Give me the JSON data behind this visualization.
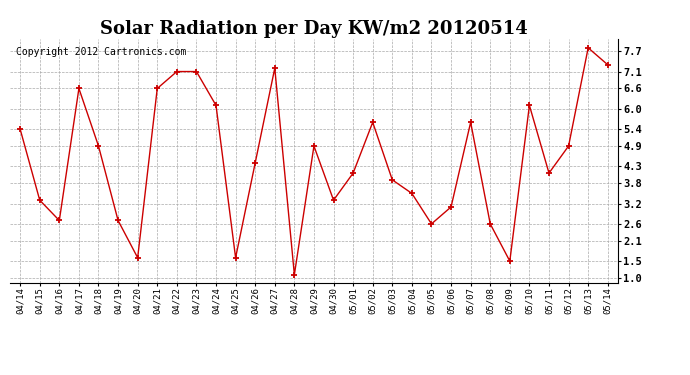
{
  "title": "Solar Radiation per Day KW/m2 20120514",
  "copyright": "Copyright 2012 Cartronics.com",
  "x_labels": [
    "04/14",
    "04/15",
    "04/16",
    "04/17",
    "04/18",
    "04/19",
    "04/20",
    "04/21",
    "04/22",
    "04/23",
    "04/24",
    "04/25",
    "04/26",
    "04/27",
    "04/28",
    "04/29",
    "04/30",
    "05/01",
    "05/02",
    "05/03",
    "05/04",
    "05/05",
    "05/06",
    "05/07",
    "05/08",
    "05/09",
    "05/10",
    "05/11",
    "05/12",
    "05/13",
    "05/14"
  ],
  "y_values": [
    5.4,
    3.3,
    2.7,
    6.6,
    4.9,
    2.7,
    1.6,
    6.6,
    7.1,
    7.1,
    6.1,
    1.6,
    4.4,
    7.2,
    1.1,
    4.9,
    3.3,
    4.1,
    5.6,
    3.9,
    3.5,
    2.6,
    3.1,
    5.6,
    2.6,
    1.5,
    6.1,
    4.1,
    4.9,
    7.8,
    7.3
  ],
  "y_ticks": [
    1.0,
    1.5,
    2.1,
    2.6,
    3.2,
    3.8,
    4.3,
    4.9,
    5.4,
    6.0,
    6.6,
    7.1,
    7.7
  ],
  "ylim": [
    0.85,
    8.05
  ],
  "line_color": "#cc0000",
  "marker_color": "#cc0000",
  "bg_color": "#ffffff",
  "plot_bg_color": "#ffffff",
  "grid_color": "#aaaaaa",
  "title_fontsize": 13,
  "copyright_fontsize": 7,
  "tick_fontsize": 7.5,
  "xtick_fontsize": 6.5
}
